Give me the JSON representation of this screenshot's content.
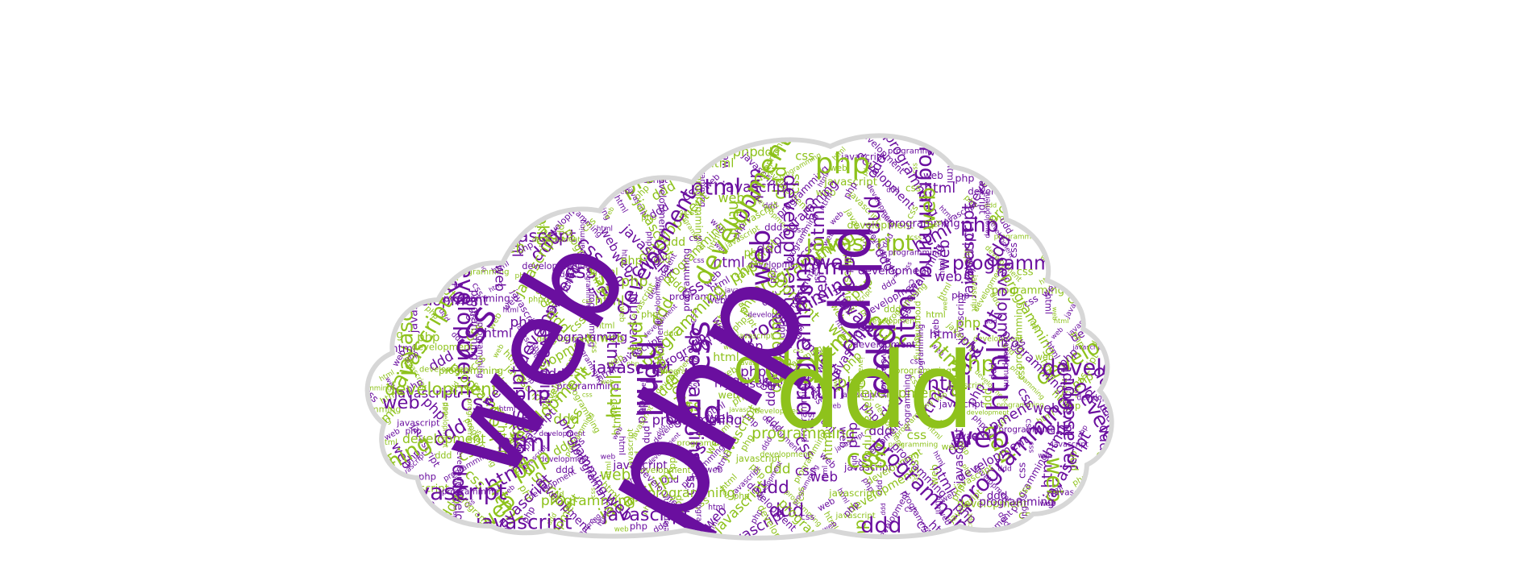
{
  "colors": {
    "purple": "#6a0f9f",
    "green": "#8ec21c",
    "cloud_fill": "#ffffff",
    "cloud_border": "#d7d7d7"
  },
  "cloud": {
    "big_words": [
      "php",
      "web",
      "ddd",
      "php"
    ],
    "words": [
      "css",
      "html",
      "javascript",
      "development",
      "programming",
      "web",
      "php",
      "ddd"
    ]
  }
}
